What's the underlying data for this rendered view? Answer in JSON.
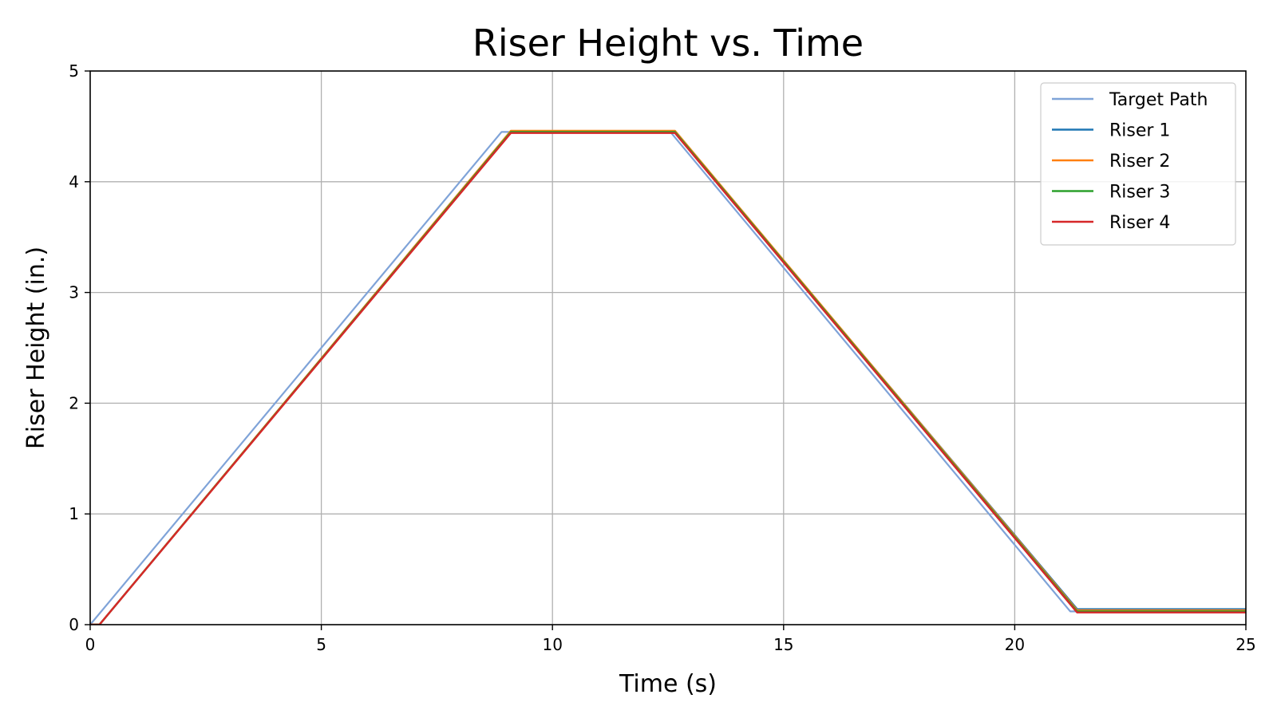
{
  "chart_data": {
    "type": "line",
    "title": "Riser Height vs. Time",
    "xlabel": "Time (s)",
    "ylabel": "Riser Height (in.)",
    "xlim": [
      0,
      25
    ],
    "ylim": [
      0,
      5
    ],
    "xticks": [
      0,
      5,
      10,
      15,
      20,
      25
    ],
    "yticks": [
      0,
      1,
      2,
      3,
      4,
      5
    ],
    "grid": true,
    "legend_position": "top-right",
    "series": [
      {
        "name": "Target Path",
        "color": "#7fa3d8",
        "x": [
          0,
          8.9,
          12.55,
          21.2,
          25
        ],
        "y": [
          0,
          4.45,
          4.45,
          0.12,
          0.12
        ]
      },
      {
        "name": "Riser 1",
        "color": "#1f77b4",
        "x": [
          0,
          0.2,
          9.1,
          12.65,
          21.35,
          25
        ],
        "y": [
          0,
          0,
          4.45,
          4.45,
          0.14,
          0.14
        ]
      },
      {
        "name": "Riser 2",
        "color": "#ff7f0e",
        "x": [
          0,
          0.2,
          9.1,
          12.65,
          21.35,
          25
        ],
        "y": [
          0,
          0,
          4.46,
          4.46,
          0.13,
          0.13
        ]
      },
      {
        "name": "Riser 3",
        "color": "#2ca02c",
        "x": [
          0,
          0.2,
          9.1,
          12.65,
          21.35,
          25
        ],
        "y": [
          0,
          0,
          4.45,
          4.45,
          0.12,
          0.12
        ]
      },
      {
        "name": "Riser 4",
        "color": "#d62728",
        "x": [
          0,
          0.2,
          9.1,
          12.65,
          21.35,
          25
        ],
        "y": [
          0,
          0,
          4.44,
          4.44,
          0.11,
          0.11
        ]
      }
    ]
  }
}
